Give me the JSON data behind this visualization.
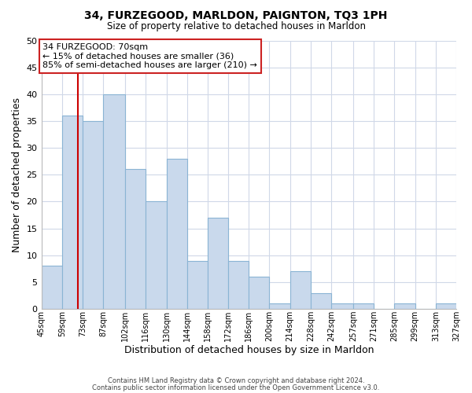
{
  "title": "34, FURZEGOOD, MARLDON, PAIGNTON, TQ3 1PH",
  "subtitle": "Size of property relative to detached houses in Marldon",
  "xlabel": "Distribution of detached houses by size in Marldon",
  "ylabel": "Number of detached properties",
  "bar_edges": [
    45,
    59,
    73,
    87,
    102,
    116,
    130,
    144,
    158,
    172,
    186,
    200,
    214,
    228,
    242,
    257,
    271,
    285,
    299,
    313,
    327
  ],
  "bar_heights": [
    8,
    36,
    35,
    40,
    26,
    20,
    28,
    9,
    17,
    9,
    6,
    1,
    7,
    3,
    1,
    1,
    0,
    1,
    0,
    1
  ],
  "bar_color": "#c9d9ec",
  "bar_edgecolor": "#8ab4d4",
  "property_line_x": 70,
  "property_line_color": "#cc0000",
  "ylim": [
    0,
    50
  ],
  "yticks": [
    0,
    5,
    10,
    15,
    20,
    25,
    30,
    35,
    40,
    45,
    50
  ],
  "xtick_labels": [
    "45sqm",
    "59sqm",
    "73sqm",
    "87sqm",
    "102sqm",
    "116sqm",
    "130sqm",
    "144sqm",
    "158sqm",
    "172sqm",
    "186sqm",
    "200sqm",
    "214sqm",
    "228sqm",
    "242sqm",
    "257sqm",
    "271sqm",
    "285sqm",
    "299sqm",
    "313sqm",
    "327sqm"
  ],
  "annotation_title": "34 FURZEGOOD: 70sqm",
  "annotation_line1": "← 15% of detached houses are smaller (36)",
  "annotation_line2": "85% of semi-detached houses are larger (210) →",
  "footer1": "Contains HM Land Registry data © Crown copyright and database right 2024.",
  "footer2": "Contains public sector information licensed under the Open Government Licence v3.0.",
  "background_color": "#ffffff",
  "grid_color": "#d0d8e8"
}
